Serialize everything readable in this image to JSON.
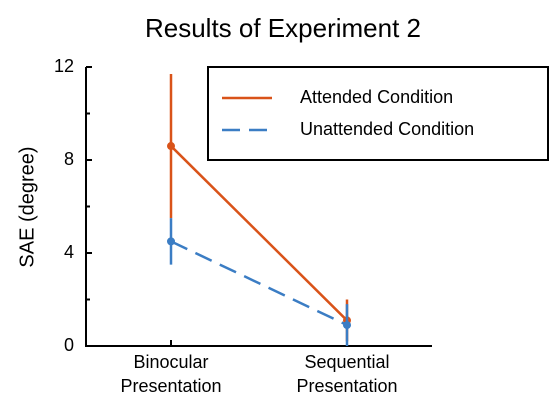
{
  "chart_data": {
    "type": "line",
    "title": "Results of Experiment 2",
    "y_label": "SAE (degree)",
    "categories": [
      "Binocular\nPresentation",
      "Sequential\nPresentation"
    ],
    "series": [
      {
        "name": "Attended Condition",
        "color": "#d95319",
        "dash": false,
        "values": [
          8.6,
          1.1
        ],
        "errors": [
          3.1,
          0.9
        ]
      },
      {
        "name": "Unattended Condition",
        "color": "#3b7dc4",
        "dash": true,
        "values": [
          4.5,
          0.9
        ],
        "errors": [
          1.0,
          0.9
        ]
      }
    ],
    "ylim": [
      0,
      12
    ],
    "yticks": [
      0,
      4,
      8,
      12
    ],
    "minor_yticks": [
      2,
      6,
      10
    ],
    "legend": "upper right",
    "grid": false
  }
}
